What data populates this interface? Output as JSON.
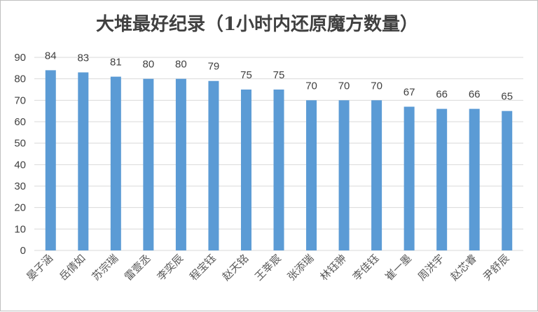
{
  "chart_data": {
    "type": "bar",
    "title": "大堆最好纪录（1小时内还原魔方数量）",
    "categories": [
      "晏子涵",
      "岳倩如",
      "苏宗瑞",
      "雷壹丞",
      "李奕辰",
      "程宝钰",
      "赵天铭",
      "王莘宸",
      "张添瑞",
      "林钰翀",
      "李佳钰",
      "崔一墨",
      "周洪宇",
      "赵芯睿",
      "尹舒辰"
    ],
    "values": [
      84,
      83,
      81,
      80,
      80,
      79,
      75,
      75,
      70,
      70,
      70,
      67,
      66,
      66,
      65
    ],
    "ylim": [
      0,
      90
    ],
    "yticks": [
      0,
      10,
      20,
      30,
      40,
      50,
      60,
      70,
      80,
      90
    ],
    "grid": true,
    "bar_color": "#5b9bd5",
    "xlabel": "",
    "ylabel": ""
  }
}
